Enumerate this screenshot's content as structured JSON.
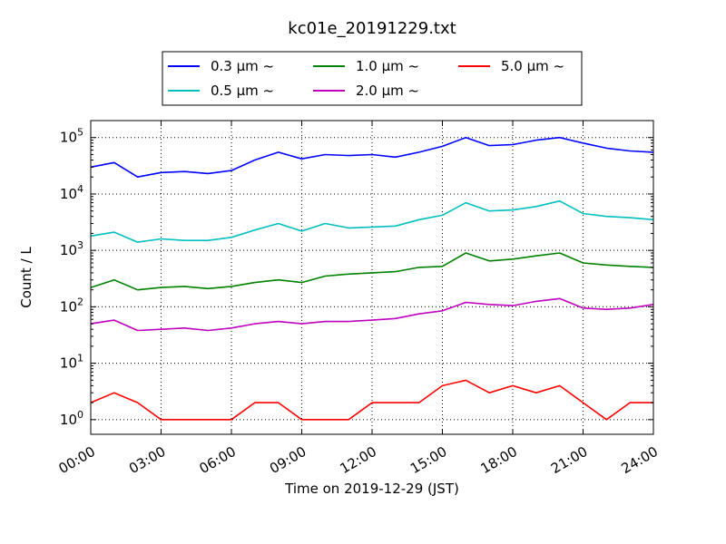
{
  "chart_data": {
    "type": "line",
    "title": "kc01e_20191229.txt",
    "xlabel": "Time on 2019-12-29 (JST)",
    "ylabel": "Count / L",
    "yscale": "log",
    "xlim": [
      "00:00",
      "24:00"
    ],
    "ylim": [
      0.55,
      200000
    ],
    "grid": true,
    "legend_position": "top-center-outside",
    "x_ticks": [
      "00:00",
      "03:00",
      "06:00",
      "09:00",
      "12:00",
      "15:00",
      "18:00",
      "21:00",
      "24:00"
    ],
    "y_ticks": [
      {
        "base": "10",
        "exp": "0"
      },
      {
        "base": "10",
        "exp": "1"
      },
      {
        "base": "10",
        "exp": "2"
      },
      {
        "base": "10",
        "exp": "3"
      },
      {
        "base": "10",
        "exp": "4"
      },
      {
        "base": "10",
        "exp": "5"
      }
    ],
    "x_hours": [
      0,
      1,
      2,
      3,
      4,
      5,
      6,
      7,
      8,
      9,
      10,
      11,
      12,
      13,
      14,
      15,
      16,
      17,
      18,
      19,
      20,
      21,
      22,
      23,
      24
    ],
    "series": [
      {
        "name": "0.3 μm ~",
        "color": "#0000ff",
        "values": [
          30000,
          36000,
          20000,
          24000,
          25000,
          23000,
          26000,
          40000,
          55000,
          42000,
          50000,
          48000,
          50000,
          45000,
          55000,
          70000,
          100000,
          72000,
          75000,
          90000,
          100000,
          80000,
          65000,
          58000,
          55000
        ]
      },
      {
        "name": "0.5 μm ~",
        "color": "#00bfbf",
        "values": [
          1800,
          2100,
          1400,
          1600,
          1500,
          1500,
          1700,
          2300,
          3000,
          2200,
          3000,
          2500,
          2600,
          2700,
          3500,
          4200,
          7000,
          5000,
          5200,
          6000,
          7500,
          4500,
          4000,
          3800,
          3500
        ]
      },
      {
        "name": "1.0 μm ~",
        "color": "#008000",
        "values": [
          220,
          300,
          200,
          220,
          230,
          210,
          230,
          270,
          300,
          270,
          350,
          380,
          400,
          420,
          500,
          520,
          900,
          650,
          700,
          800,
          900,
          600,
          550,
          520,
          500
        ]
      },
      {
        "name": "2.0 μm ~",
        "color": "#bf00bf",
        "values": [
          50,
          58,
          38,
          40,
          42,
          38,
          42,
          50,
          55,
          50,
          55,
          55,
          58,
          62,
          75,
          85,
          120,
          110,
          105,
          125,
          140,
          95,
          90,
          95,
          110
        ]
      },
      {
        "name": "5.0 μm ~",
        "color": "#ff0000",
        "values": [
          2,
          3,
          2,
          1,
          1,
          1,
          1,
          2,
          2,
          1,
          1,
          1,
          2,
          2,
          2,
          4,
          5,
          3,
          4,
          3,
          4,
          2,
          1,
          2,
          2
        ]
      }
    ]
  }
}
